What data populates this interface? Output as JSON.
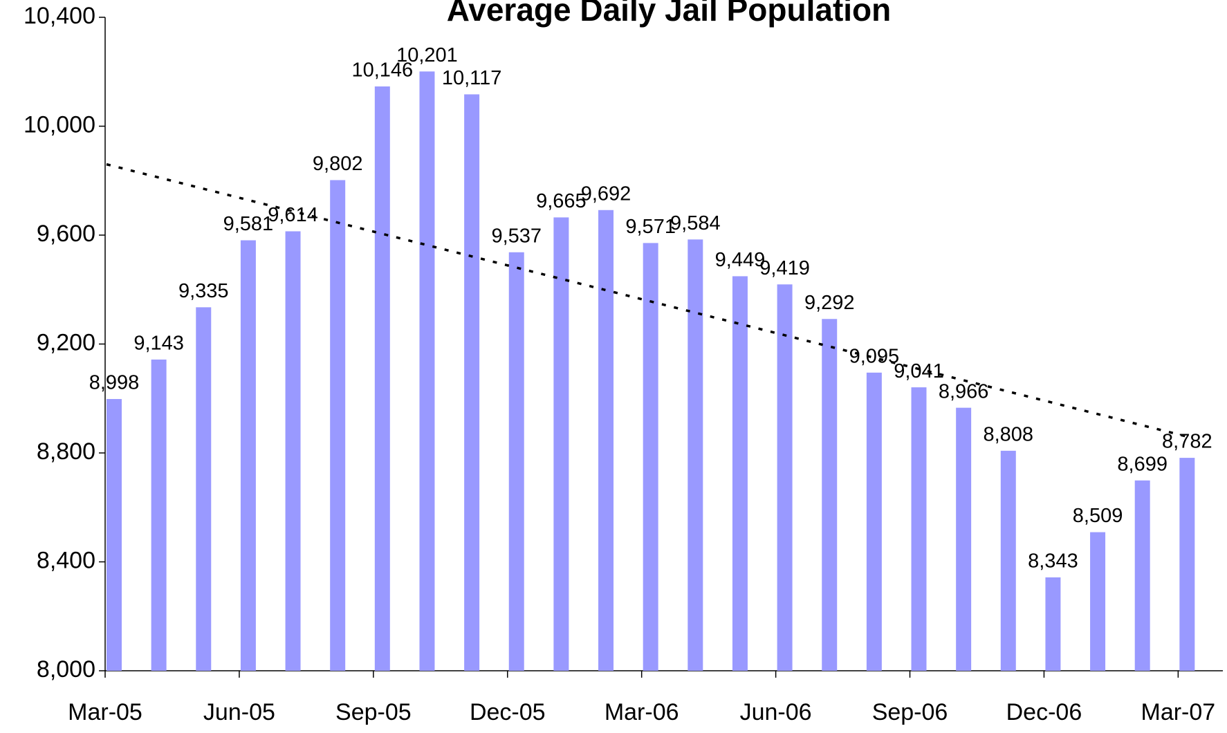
{
  "chart_data": {
    "type": "bar",
    "title": "Average Daily Jail Population",
    "categories": [
      "Mar-05",
      null,
      null,
      "Jun-05",
      null,
      null,
      "Sep-05",
      null,
      null,
      "Dec-05",
      null,
      null,
      "Mar-06",
      null,
      null,
      "Jun-06",
      null,
      null,
      "Sep-06",
      null,
      null,
      "Dec-06",
      null,
      null,
      "Mar-07"
    ],
    "values": [
      8998,
      9143,
      9335,
      9581,
      9614,
      9802,
      10146,
      10201,
      10117,
      9537,
      9665,
      9692,
      9571,
      9584,
      9449,
      9419,
      9292,
      9095,
      9041,
      8966,
      8808,
      8343,
      8509,
      8699,
      8782
    ],
    "value_labels": [
      "8,998",
      "9,143",
      "9,335",
      "9,581",
      "9,614",
      "9,802",
      "10,146",
      "10,201",
      "10,117",
      "9,537",
      "9,665",
      "9,692",
      "9,571",
      "9,584",
      "9,449",
      "9,419",
      "9,292",
      "9,095",
      "9,041",
      "8,966",
      "8,808",
      "8,343",
      "8,509",
      "8,699",
      "8,782"
    ],
    "color": "#9999ff",
    "trendline": [
      9860,
      8860
    ],
    "trendline_color": "#000000",
    "ylim": [
      8000,
      10400
    ],
    "yticks": [
      {
        "value": 8000,
        "label": "8,000"
      },
      {
        "value": 8400,
        "label": "8,400"
      },
      {
        "value": 8800,
        "label": "8,800"
      },
      {
        "value": 9200,
        "label": "9,200"
      },
      {
        "value": 9600,
        "label": "9,600"
      },
      {
        "value": 10000,
        "label": "10,000"
      },
      {
        "value": 10400,
        "label": "10,400"
      }
    ],
    "grid": false
  }
}
